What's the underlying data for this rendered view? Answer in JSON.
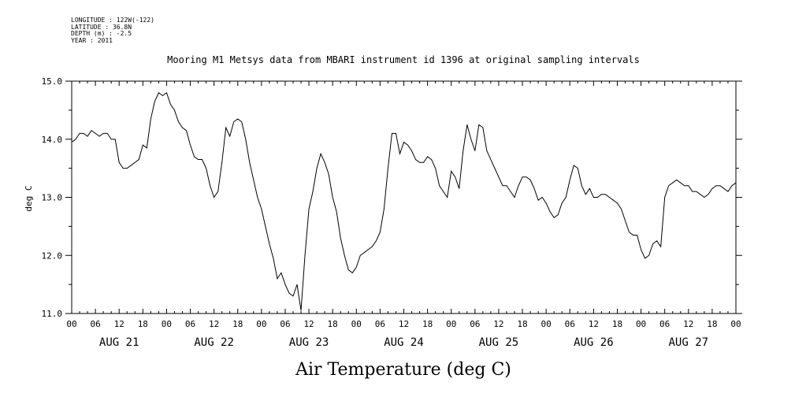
{
  "header": {
    "longitude": "LONGITUDE : 122W(-122)",
    "latitude": "LATITUDE : 36.8N",
    "depth": "DEPTH (m) : -2.5",
    "year": "YEAR : 2011"
  },
  "chart_data": {
    "type": "line",
    "title": "Mooring M1 Metsys data from MBARI instrument id 1396 at original sampling intervals",
    "ylabel": "deg C",
    "xlabel": "Air Temperature (deg C)",
    "ylim": [
      11.0,
      15.0
    ],
    "yticks": [
      "11.0",
      "12.0",
      "13.0",
      "14.0",
      "15.0"
    ],
    "xlim_hours": [
      0,
      168
    ],
    "hour_tick_labels": [
      "00",
      "06",
      "12",
      "18",
      "00",
      "06",
      "12",
      "18",
      "00",
      "06",
      "12",
      "18",
      "00",
      "06",
      "12",
      "18",
      "00",
      "06",
      "12",
      "18",
      "00",
      "06",
      "12",
      "18",
      "00",
      "06",
      "12",
      "18",
      "00"
    ],
    "day_labels": [
      "AUG 21",
      "AUG 22",
      "AUG 23",
      "AUG 24",
      "AUG 25",
      "AUG 26",
      "AUG 27"
    ],
    "grid": false,
    "series": [
      {
        "color": "#000000",
        "x_hours": [
          0,
          1,
          2,
          3,
          4,
          5,
          6,
          7,
          8,
          9,
          10,
          11,
          12,
          13,
          14,
          15,
          16,
          17,
          18,
          19,
          20,
          21,
          22,
          23,
          24,
          25,
          26,
          27,
          28,
          29,
          30,
          31,
          32,
          33,
          34,
          35,
          36,
          37,
          38,
          39,
          40,
          41,
          42,
          43,
          44,
          45,
          46,
          47,
          48,
          49,
          50,
          51,
          52,
          53,
          54,
          55,
          56,
          57,
          58,
          59,
          60,
          61,
          62,
          63,
          64,
          65,
          66,
          67,
          68,
          69,
          70,
          71,
          72,
          73,
          74,
          75,
          76,
          77,
          78,
          79,
          80,
          81,
          82,
          83,
          84,
          85,
          86,
          87,
          88,
          89,
          90,
          91,
          92,
          93,
          94,
          95,
          96,
          97,
          98,
          99,
          100,
          101,
          102,
          103,
          104,
          105,
          106,
          107,
          108,
          109,
          110,
          111,
          112,
          113,
          114,
          115,
          116,
          117,
          118,
          119,
          120,
          121,
          122,
          123,
          124,
          125,
          126,
          127,
          128,
          129,
          130,
          131,
          132,
          133,
          134,
          135,
          136,
          137,
          138,
          139,
          140,
          141,
          142,
          143,
          144,
          145,
          146,
          147,
          148,
          149,
          150,
          151,
          152,
          153,
          154,
          155,
          156,
          157,
          158,
          159,
          160,
          161,
          162,
          163,
          164,
          165,
          166,
          167,
          168
        ],
        "values": [
          13.95,
          14.0,
          14.1,
          14.1,
          14.05,
          14.15,
          14.1,
          14.05,
          14.1,
          14.1,
          14.0,
          14.0,
          13.6,
          13.5,
          13.5,
          13.55,
          13.6,
          13.65,
          13.9,
          13.85,
          14.35,
          14.65,
          14.8,
          14.75,
          14.8,
          14.6,
          14.5,
          14.3,
          14.2,
          14.15,
          13.9,
          13.7,
          13.65,
          13.65,
          13.5,
          13.2,
          13.0,
          13.1,
          13.6,
          14.2,
          14.05,
          14.3,
          14.35,
          14.3,
          14.0,
          13.6,
          13.3,
          13.0,
          12.8,
          12.5,
          12.2,
          11.95,
          11.6,
          11.7,
          11.5,
          11.35,
          11.3,
          11.5,
          11.05,
          12.0,
          12.8,
          13.1,
          13.5,
          13.75,
          13.6,
          13.4,
          13.0,
          12.75,
          12.3,
          12.0,
          11.75,
          11.7,
          11.8,
          12.0,
          12.05,
          12.1,
          12.15,
          12.25,
          12.4,
          12.8,
          13.5,
          14.1,
          14.1,
          13.75,
          13.95,
          13.9,
          13.8,
          13.65,
          13.6,
          13.6,
          13.7,
          13.65,
          13.5,
          13.2,
          13.1,
          13.0,
          13.45,
          13.35,
          13.15,
          13.8,
          14.25,
          14.0,
          13.8,
          14.25,
          14.2,
          13.8,
          13.65,
          13.5,
          13.35,
          13.2,
          13.2,
          13.1,
          13.0,
          13.2,
          13.35,
          13.35,
          13.3,
          13.15,
          12.95,
          13.0,
          12.9,
          12.75,
          12.65,
          12.7,
          12.9,
          13.0,
          13.3,
          13.55,
          13.5,
          13.2,
          13.05,
          13.15,
          13.0,
          13.0,
          13.05,
          13.05,
          13.0,
          12.95,
          12.9,
          12.8,
          12.6,
          12.4,
          12.35,
          12.35,
          12.1,
          11.95,
          12.0,
          12.2,
          12.25,
          12.15,
          13.0,
          13.2,
          13.25,
          13.3,
          13.25,
          13.2,
          13.2,
          13.1,
          13.1,
          13.05,
          13.0,
          13.05,
          13.15,
          13.2,
          13.2,
          13.15,
          13.1,
          13.2,
          13.25
        ]
      }
    ]
  }
}
